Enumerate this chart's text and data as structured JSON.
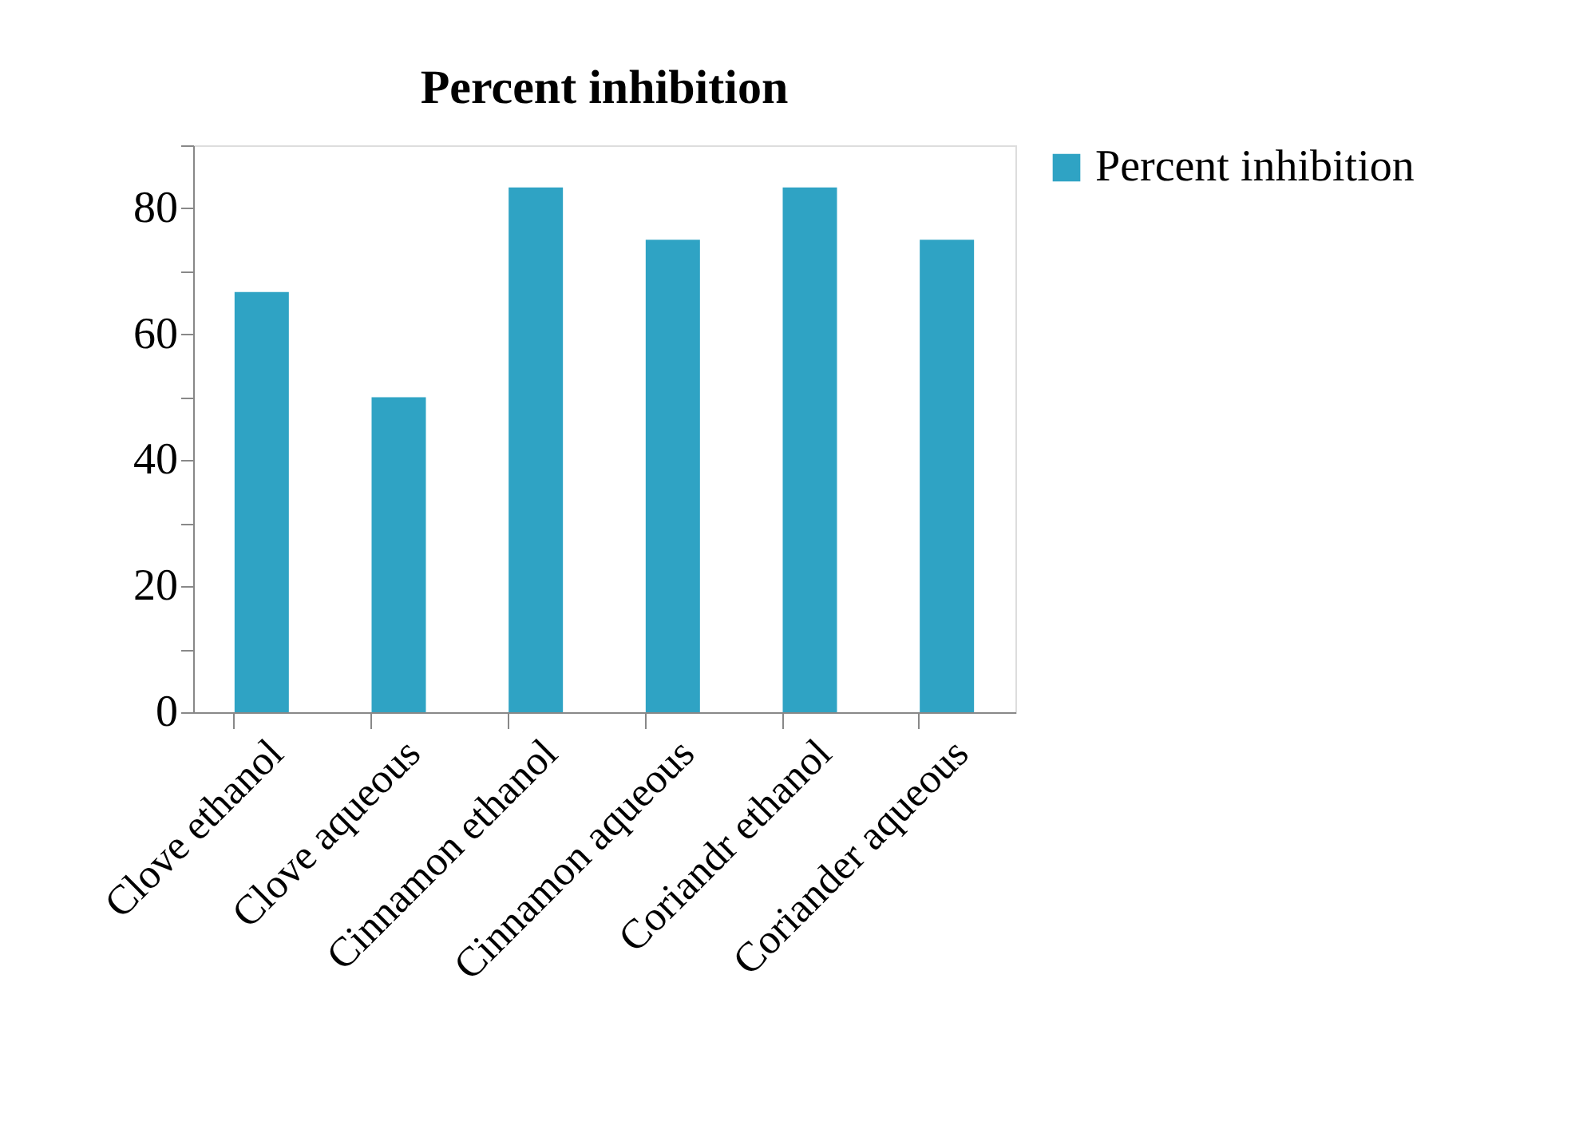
{
  "chart_data": {
    "type": "bar",
    "title": "Percent inhibition",
    "categories": [
      "Clove ethanol",
      "Clove aqueous",
      "Cinnamon ethanol",
      "Cinnamon aqueous",
      "Coriandr ethanol",
      "Coriander aqueous"
    ],
    "series": [
      {
        "name": "Percent inhibition",
        "color": "#2fa3c4",
        "values": [
          66.7,
          50,
          83.3,
          75,
          83.3,
          75
        ]
      }
    ],
    "ylim": [
      0,
      90
    ],
    "yticks": [
      0,
      {
        "value": 10,
        "label": null
      },
      20,
      {
        "value": 30,
        "label": null
      },
      40,
      {
        "value": 50,
        "label": null
      },
      60,
      {
        "value": 70,
        "label": null
      },
      80,
      {
        "value": 90,
        "label": null
      }
    ],
    "grid": false,
    "legend": "right"
  }
}
